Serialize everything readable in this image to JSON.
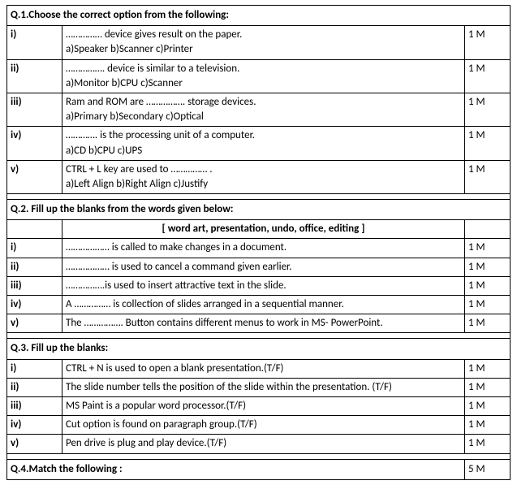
{
  "q1": {
    "heading": "Q.1.Choose the correct option from the following:",
    "items": [
      {
        "num": "i)",
        "line1": "…………… device gives result on the paper.",
        "opts": "a)Speaker   b)Scanner   c)Printer",
        "marks": "1 M"
      },
      {
        "num": "ii)",
        "line1": "……………. device is similar to a television.",
        "opts": "a)Monitor   b)CPU   c)Scanner",
        "marks": "1 M"
      },
      {
        "num": "iii)",
        "line1": "Ram and ROM are ……………. storage devices.",
        "opts": "a)Primary   b)Secondary   c)Optical",
        "marks": "1 M"
      },
      {
        "num": "iv)",
        "line1": "…………. is the processing unit of a computer.",
        "opts": "a)CD   b)CPU    c)UPS",
        "marks": "1 M"
      },
      {
        "num": "v)",
        "line1": "CTRL + L key are used to …………… .",
        "opts": "a)Left Align          b)Right Align      c)Justify",
        "marks": "1 M"
      }
    ]
  },
  "q2": {
    "heading": "Q.2.     Fill up the blanks from the words given below:",
    "wordbank": "[ word art, presentation, undo, office, editing ]",
    "items": [
      {
        "num": "i)",
        "text": "……………… is called to make changes in a document.",
        "marks": "1 M"
      },
      {
        "num": "ii)",
        "text": "……………… is used to cancel a command given earlier.",
        "marks": "1 M"
      },
      {
        "num": "iii)",
        "text": "…………….is used to insert attractive text in the slide.",
        "marks": "1 M"
      },
      {
        "num": "iv)",
        "text": "A …………… is collection of slides arranged in a sequential manner.",
        "marks": "1 M"
      },
      {
        "num": "v)",
        "text": "The ……………. Button contains different menus to work in MS- PowerPoint.",
        "marks": "1 M"
      }
    ]
  },
  "q3": {
    "heading": "Q.3.    Fill up the blanks:",
    "items": [
      {
        "num": "i)",
        "text": "CTRL + N is used to open a blank presentation.(T/F)",
        "marks": "1 M"
      },
      {
        "num": "ii)",
        "text": "The slide number tells the position of the slide within the presentation. (T/F)",
        "marks": "1 M"
      },
      {
        "num": "iii)",
        "text": "MS Paint is a popular word processor.(T/F)",
        "marks": "1 M"
      },
      {
        "num": "iv)",
        "text": "Cut option is found on paragraph group.(T/F)",
        "marks": "1 M"
      },
      {
        "num": "v)",
        "text": "Pen drive is plug and play device.(T/F)",
        "marks": "1 M"
      }
    ]
  },
  "q4": {
    "heading": "Q.4.Match the following :",
    "marks": "5 M"
  }
}
